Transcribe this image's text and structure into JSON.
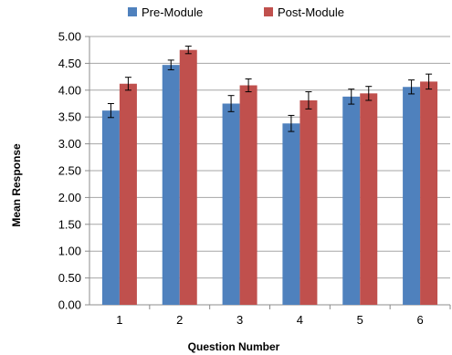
{
  "chart_data": {
    "type": "bar",
    "title": "",
    "xlabel": "Question Number",
    "ylabel": "Mean Response",
    "categories": [
      "1",
      "2",
      "3",
      "4",
      "5",
      "6"
    ],
    "ylim": [
      0,
      5
    ],
    "ytick_step": 0.5,
    "ytick_labels": [
      "0.00",
      "0.50",
      "1.00",
      "1.50",
      "2.00",
      "2.50",
      "3.00",
      "3.50",
      "4.00",
      "4.50",
      "5.00"
    ],
    "grid": true,
    "legend_position": "top",
    "series": [
      {
        "name": "Pre-Module",
        "color": "#4f81bd",
        "values": [
          3.62,
          4.47,
          3.75,
          3.38,
          3.88,
          4.06
        ],
        "error": [
          0.13,
          0.09,
          0.15,
          0.15,
          0.14,
          0.13
        ]
      },
      {
        "name": "Post-Module",
        "color": "#c0504d",
        "values": [
          4.12,
          4.75,
          4.09,
          3.81,
          3.94,
          4.16
        ],
        "error": [
          0.12,
          0.07,
          0.12,
          0.16,
          0.13,
          0.14
        ]
      }
    ]
  }
}
